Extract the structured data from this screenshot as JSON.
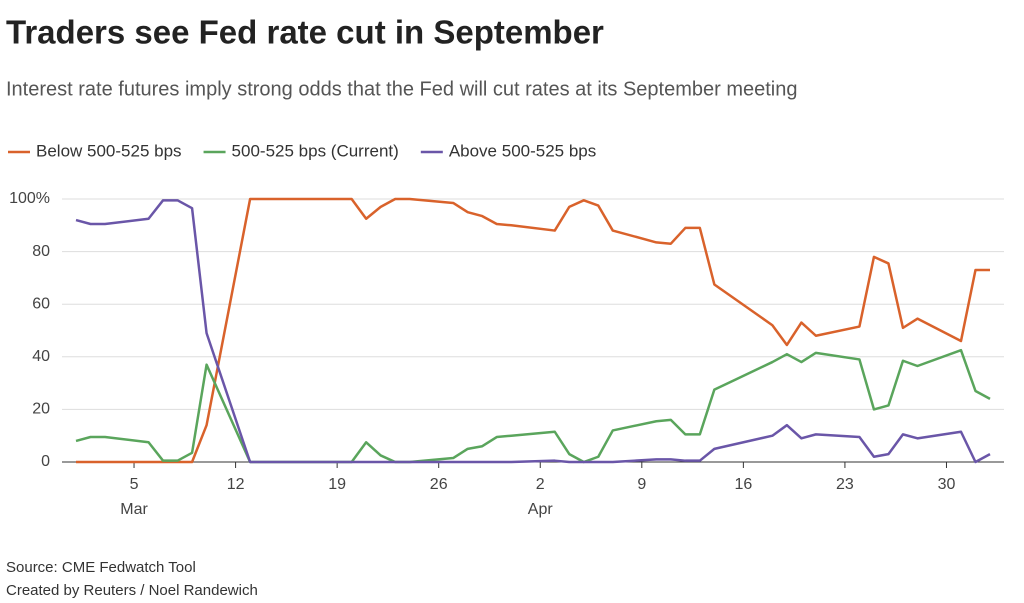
{
  "chart_data": {
    "type": "line",
    "title": "Traders see Fed rate cut in September",
    "subtitle": "Interest rate futures imply strong odds that the Fed will cut rates at its September meeting",
    "source": "Source: CME Fedwatch Tool",
    "credit": "Created by Reuters / Noel Randewich",
    "x": [
      "Mar 1",
      "Mar 2",
      "Mar 3",
      "Mar 6",
      "Mar 7",
      "Mar 8",
      "Mar 9",
      "Mar 10",
      "Mar 13",
      "Mar 20",
      "Mar 21",
      "Mar 22",
      "Mar 23",
      "Mar 24",
      "Mar 27",
      "Mar 28",
      "Mar 29",
      "Mar 30",
      "Mar 31",
      "Apr 3",
      "Apr 4",
      "Apr 5",
      "Apr 6",
      "Apr 7",
      "Apr 10",
      "Apr 11",
      "Apr 12",
      "Apr 13",
      "Apr 14",
      "Apr 18",
      "Apr 19",
      "Apr 20",
      "Apr 21",
      "Apr 24",
      "Apr 25",
      "Apr 26",
      "Apr 27",
      "Apr 28",
      "May 1",
      "May 2",
      "May 3"
    ],
    "series": [
      {
        "name": "Below 500-525 bps",
        "color": "#d9622b",
        "values": [
          0,
          0,
          0,
          0,
          0,
          0,
          0,
          14,
          100,
          100,
          92.5,
          97,
          100,
          100,
          98.5,
          95,
          93.5,
          90.5,
          90,
          88,
          97,
          99.5,
          97.5,
          88,
          83.5,
          83,
          89,
          89,
          67.5,
          52,
          44.5,
          53,
          48,
          51.5,
          78,
          75.5,
          51,
          54.5,
          46,
          73,
          73
        ]
      },
      {
        "name": "500-525 bps (Current)",
        "color": "#5aa55c",
        "values": [
          8,
          9.5,
          9.5,
          7.5,
          0.5,
          0.5,
          3.5,
          37,
          0,
          0,
          7.5,
          2.5,
          0,
          0,
          1.5,
          5,
          6,
          9.5,
          10,
          11.5,
          3,
          0,
          2,
          12,
          15.5,
          16,
          10.5,
          10.5,
          27.5,
          38,
          41,
          38,
          41.5,
          39,
          20,
          21.5,
          38.5,
          36.5,
          42.5,
          27,
          24
        ]
      },
      {
        "name": "Above 500-525 bps",
        "color": "#6a56a8",
        "values": [
          92,
          90.5,
          90.5,
          92.5,
          99.5,
          99.5,
          96.5,
          49,
          0,
          0,
          0,
          0,
          0,
          0,
          0,
          0,
          0,
          0,
          0,
          0.5,
          0,
          0,
          0,
          0,
          1,
          1,
          0.5,
          0.5,
          5,
          10,
          14,
          9,
          10.5,
          9.5,
          2,
          3,
          10.5,
          9,
          11.5,
          0,
          3
        ]
      }
    ],
    "xlim": [
      "Mar 1",
      "May 3"
    ],
    "xticks": [
      {
        "value": "Mar 5",
        "label": "5"
      },
      {
        "value": "Mar 12",
        "label": "12"
      },
      {
        "value": "Mar 19",
        "label": "19"
      },
      {
        "value": "Mar 26",
        "label": "26"
      },
      {
        "value": "Apr 2",
        "label": "2"
      },
      {
        "value": "Apr 9",
        "label": "9"
      },
      {
        "value": "Apr 16",
        "label": "16"
      },
      {
        "value": "Apr 23",
        "label": "23"
      },
      {
        "value": "Apr 30",
        "label": "30"
      }
    ],
    "x_month_labels": [
      {
        "value": "Mar 5",
        "label": "Mar"
      },
      {
        "value": "Apr 2",
        "label": "Apr"
      }
    ],
    "ylim": [
      0,
      100
    ],
    "yticks": [
      0,
      20,
      40,
      60,
      80,
      {
        "value": 100,
        "label": "100%"
      }
    ],
    "grid": true,
    "legend": "top-left"
  }
}
